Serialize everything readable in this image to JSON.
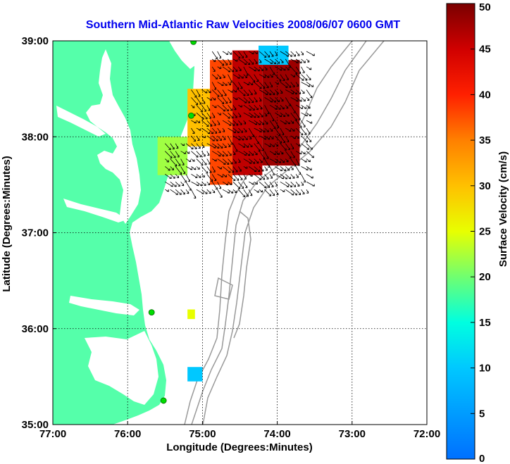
{
  "title": "Southern Mid-Atlantic Raw Velocities 2008/06/07 0600 GMT",
  "colors": {
    "title": "#0000ee",
    "land": "#55ffaa",
    "bathymetry": "#999999",
    "arrows": "#000000",
    "stations": "#00dd00"
  },
  "map": {
    "xlabel": "Longitude (Degrees:Minutes)",
    "ylabel": "Latitude (Degrees:Minutes)",
    "lon_range": [
      -77,
      -72
    ],
    "lat_range": [
      35,
      39
    ],
    "lon_ticks": [
      {
        "value": -77,
        "label": "77:00"
      },
      {
        "value": -76,
        "label": "76:00"
      },
      {
        "value": -75,
        "label": "75:00"
      },
      {
        "value": -74,
        "label": "74:00"
      },
      {
        "value": -73,
        "label": "73:00"
      },
      {
        "value": -72,
        "label": "72:00"
      }
    ],
    "lat_ticks": [
      {
        "value": 39,
        "label": "39:00"
      },
      {
        "value": 38,
        "label": "38:00"
      },
      {
        "value": 37,
        "label": "37:00"
      },
      {
        "value": 36,
        "label": "36:00"
      },
      {
        "value": 35,
        "label": "35:00"
      }
    ],
    "grid": true,
    "stations": [
      {
        "lon": -75.12,
        "lat": 38.99
      },
      {
        "lon": -75.15,
        "lat": 38.22
      },
      {
        "lon": -75.68,
        "lat": 36.17
      },
      {
        "lon": -75.52,
        "lat": 35.25
      }
    ]
  },
  "colorbar": {
    "label": "Surface Velocity (cm/s)",
    "min": 0,
    "max": 50,
    "ticks": [
      {
        "value": 0,
        "label": "0"
      },
      {
        "value": 5,
        "label": "5"
      },
      {
        "value": 10,
        "label": "10"
      },
      {
        "value": 15,
        "label": "15"
      },
      {
        "value": 20,
        "label": "20"
      },
      {
        "value": 25,
        "label": "25"
      },
      {
        "value": 30,
        "label": "30"
      },
      {
        "value": 35,
        "label": "35"
      },
      {
        "value": 40,
        "label": "40"
      },
      {
        "value": 45,
        "label": "45"
      },
      {
        "value": 50,
        "label": "50"
      }
    ]
  },
  "chart_data": {
    "type": "heatmap",
    "title": "Southern Mid-Atlantic Raw Velocities 2008/06/07 0600 GMT",
    "xlabel": "Longitude (Degrees:Minutes)",
    "ylabel": "Latitude (Degrees:Minutes)",
    "xlim": [
      -77,
      -72
    ],
    "ylim": [
      35,
      39
    ],
    "value_label": "Surface Velocity (cm/s)",
    "value_range": [
      0,
      50
    ],
    "grid": true,
    "regions": [
      {
        "lon_range": [
          -75.6,
          -75.2
        ],
        "lat_range": [
          37.6,
          38.0
        ],
        "speed": 22
      },
      {
        "lon_range": [
          -75.2,
          -74.9
        ],
        "lat_range": [
          37.9,
          38.5
        ],
        "speed": 30
      },
      {
        "lon_range": [
          -74.9,
          -74.6
        ],
        "lat_range": [
          37.5,
          38.8
        ],
        "speed": 38
      },
      {
        "lon_range": [
          -74.6,
          -74.2
        ],
        "lat_range": [
          37.6,
          38.9
        ],
        "speed": 46
      },
      {
        "lon_range": [
          -74.2,
          -73.7
        ],
        "lat_range": [
          37.7,
          38.8
        ],
        "speed": 48
      },
      {
        "lon_range": [
          -74.25,
          -73.85
        ],
        "lat_range": [
          38.75,
          38.95
        ],
        "speed": 10
      },
      {
        "lon_range": [
          -75.2,
          -75.1
        ],
        "lat_range": [
          36.1,
          36.2
        ],
        "speed": 25
      },
      {
        "lon_range": [
          -75.2,
          -75.0
        ],
        "lat_range": [
          35.45,
          35.6
        ],
        "speed": 10
      }
    ],
    "vector_field": {
      "dominant_direction": "southeast",
      "extent": {
        "lon_range": [
          -75.5,
          -73.6
        ],
        "lat_range": [
          37.4,
          38.95
        ]
      }
    }
  }
}
